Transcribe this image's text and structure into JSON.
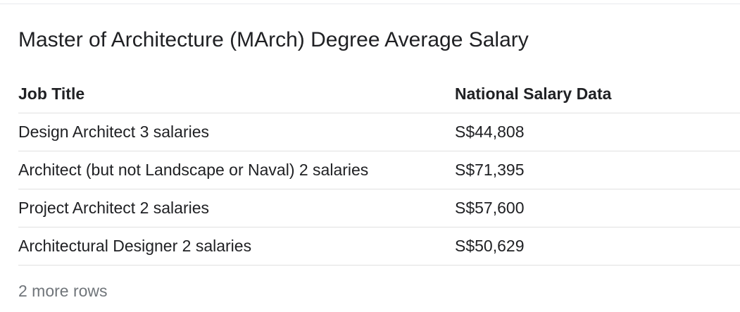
{
  "title": "Master of Architecture (MArch) Degree Average Salary",
  "table": {
    "headers": {
      "job_title": "Job Title",
      "salary": "National Salary Data"
    },
    "rows": [
      {
        "job_title": "Design Architect 3 salaries",
        "salary": "S$44,808"
      },
      {
        "job_title": "Architect (but not Landscape or Naval) 2 salaries",
        "salary": "S$71,395"
      },
      {
        "job_title": "Project Architect 2 salaries",
        "salary": "S$57,600"
      },
      {
        "job_title": "Architectural Designer 2 salaries",
        "salary": "S$50,629"
      }
    ]
  },
  "more_rows_label": "2 more rows"
}
